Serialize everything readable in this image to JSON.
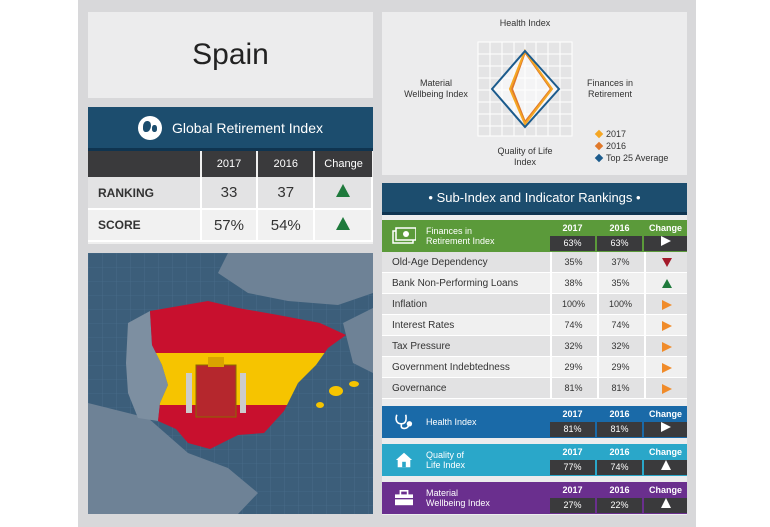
{
  "country": "Spain",
  "gri": {
    "title": "Global Retirement Index",
    "headers": [
      "",
      "2017",
      "2016",
      "Change"
    ],
    "rows": [
      {
        "label": "RANKING",
        "y2017": "33",
        "y2016": "37",
        "change": "up"
      },
      {
        "label": "SCORE",
        "y2017": "57%",
        "y2016": "54%",
        "change": "up"
      }
    ]
  },
  "radar": {
    "labels": {
      "top": "Health Index",
      "left": "Material\nWellbeing Index",
      "right": "Finances in\nRetirement",
      "bottom": "Quality of Life\nIndex"
    },
    "legend": [
      {
        "label": "2017",
        "color": "#f5a623"
      },
      {
        "label": "2016",
        "color": "#e0792b"
      },
      {
        "label": "Top 25 Average",
        "color": "#1c5b8c"
      }
    ]
  },
  "sub": {
    "title": "• Sub-Index and Indicator Rankings •",
    "col_2017": "2017",
    "col_2016": "2016",
    "col_change": "Change",
    "finances": {
      "name": "Finances in\nRetirement Index",
      "color": "#5b9a3a",
      "y2017": "63%",
      "y2016": "63%",
      "change": "same",
      "indicators": [
        {
          "name": "Old-Age Dependency",
          "y2017": "35%",
          "y2016": "37%",
          "change": "down"
        },
        {
          "name": "Bank Non-Performing Loans",
          "y2017": "38%",
          "y2016": "35%",
          "change": "up"
        },
        {
          "name": "Inflation",
          "y2017": "100%",
          "y2016": "100%",
          "change": "same"
        },
        {
          "name": "Interest Rates",
          "y2017": "74%",
          "y2016": "74%",
          "change": "same"
        },
        {
          "name": "Tax Pressure",
          "y2017": "32%",
          "y2016": "32%",
          "change": "same"
        },
        {
          "name": "Government Indebtedness",
          "y2017": "29%",
          "y2016": "29%",
          "change": "same"
        },
        {
          "name": "Governance",
          "y2017": "81%",
          "y2016": "81%",
          "change": "same"
        }
      ]
    },
    "health": {
      "name": "Health Index",
      "color": "#1a6aa8",
      "y2017": "81%",
      "y2016": "81%",
      "change": "same"
    },
    "quality": {
      "name": "Quality of\nLife Index",
      "color": "#2aa7c9",
      "y2017": "77%",
      "y2016": "74%",
      "change": "up"
    },
    "material": {
      "name": "Material\nWellbeing Index",
      "color": "#6a2f8e",
      "y2017": "27%",
      "y2016": "22%",
      "change": "up"
    }
  }
}
